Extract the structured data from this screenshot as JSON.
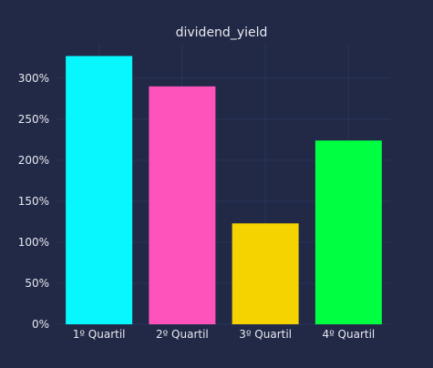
{
  "chart_data": {
    "type": "bar",
    "title": "dividend_yield",
    "xlabel": "",
    "ylabel": "",
    "categories": [
      "1º Quartil",
      "2º Quartil",
      "3º Quartil",
      "4º Quartil"
    ],
    "values": [
      3.27,
      2.9,
      1.23,
      2.24
    ],
    "ylim": [
      0,
      3.42
    ],
    "yticks": [
      0,
      0.5,
      1.0,
      1.5,
      2.0,
      2.5,
      3.0
    ],
    "ytick_labels": [
      "0%",
      "50%",
      "100%",
      "150%",
      "200%",
      "250%",
      "300%"
    ],
    "bar_colors": [
      "#08F7FE",
      "#FE53BB",
      "#F5D300",
      "#00ff41"
    ],
    "grid": true
  },
  "colors": {
    "background": "#212946",
    "grid": "#2A3459",
    "text": "#e8e8ef"
  }
}
